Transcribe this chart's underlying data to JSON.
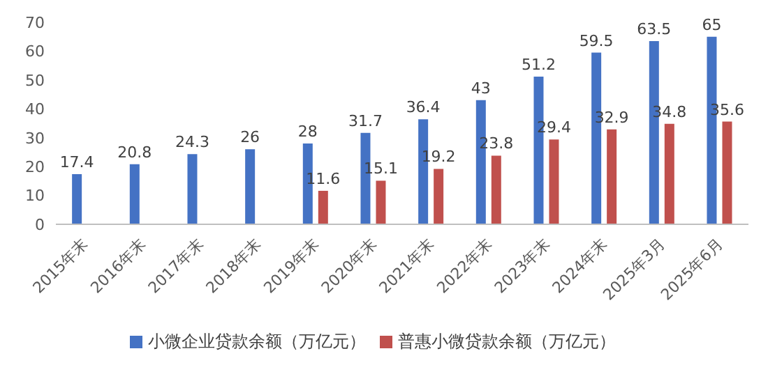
{
  "chart_data": {
    "type": "bar",
    "categories": [
      "2015年末",
      "2016年末",
      "2017年末",
      "2018年末",
      "2019年末",
      "2020年末",
      "2021年末",
      "2022年末",
      "2023年末",
      "2024年末",
      "2025年3月",
      "2025年6月"
    ],
    "series": [
      {
        "name": "小微企业贷款余额（万亿元）",
        "color": "#4472c4",
        "values": [
          17.4,
          20.8,
          24.3,
          26,
          28,
          31.7,
          36.4,
          43,
          51.2,
          59.5,
          63.5,
          65
        ]
      },
      {
        "name": "普惠小微贷款余额（万亿元）",
        "color": "#c0504d",
        "values": [
          null,
          null,
          null,
          null,
          11.6,
          15.1,
          19.2,
          23.8,
          29.4,
          32.9,
          34.8,
          35.6
        ]
      }
    ],
    "ylim": [
      0,
      70
    ],
    "yticks": [
      0,
      10,
      20,
      30,
      40,
      50,
      60,
      70
    ],
    "legend": "bottom",
    "data_labels": true
  }
}
